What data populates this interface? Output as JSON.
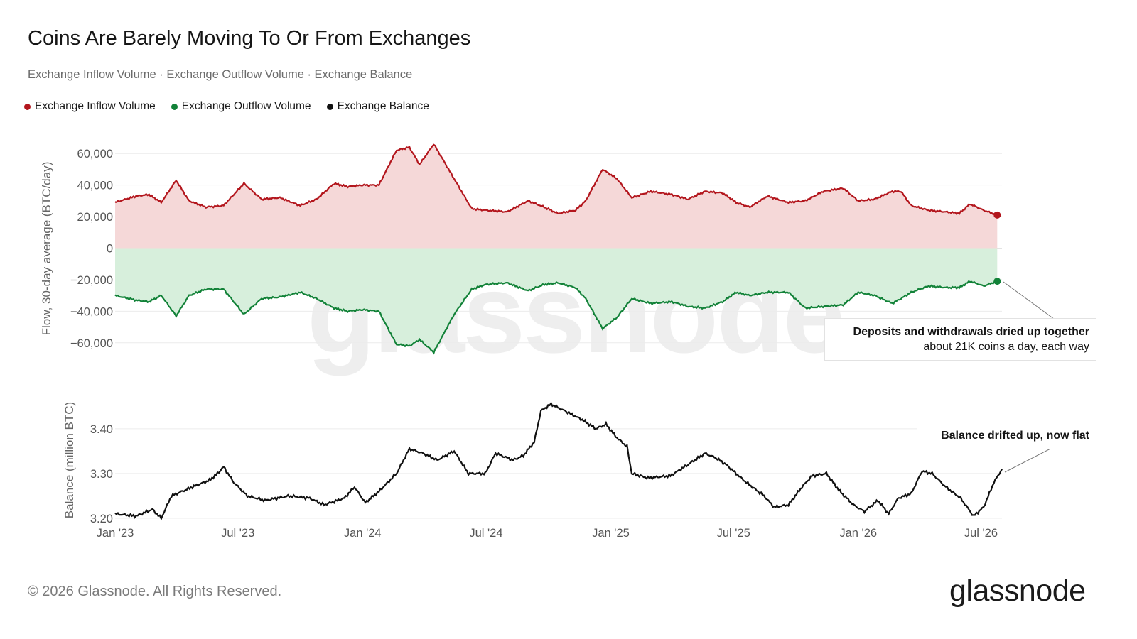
{
  "title": "Coins Are Barely Moving To Or From Exchanges",
  "subtitle": "Exchange Inflow Volume · Exchange Outflow Volume · Exchange Balance",
  "legend": [
    {
      "label": "Exchange Inflow Volume",
      "color": "#b3161d"
    },
    {
      "label": "Exchange Outflow Volume",
      "color": "#128238"
    },
    {
      "label": "Exchange Balance",
      "color": "#111111"
    }
  ],
  "colors": {
    "inflow_line": "#b3161d",
    "inflow_fill": "#f5d8d8",
    "outflow_line": "#128238",
    "outflow_fill": "#d7efdc",
    "balance_line": "#111111",
    "grid": "#ececec"
  },
  "watermark": "glassnode",
  "callouts": {
    "flow": {
      "bold": "Deposits and withdrawals dried up together",
      "text": "about 21K coins a day, each way"
    },
    "balance": {
      "bold": "Balance drifted up, now flat"
    }
  },
  "footer": "© 2026 Glassnode. All Rights Reserved.",
  "logo": "glassnode",
  "chart_data": [
    {
      "type": "area",
      "ylabel": "Flow, 30-day average (BTC/day)",
      "ylim": [
        -70000,
        70000
      ],
      "yticks": [
        60000,
        40000,
        20000,
        0,
        -20000,
        -40000,
        -60000
      ],
      "ytick_labels": [
        "60,000",
        "40,000",
        "20,000",
        "0",
        "−20,000",
        "−40,000",
        "−60,000"
      ],
      "x_range": [
        "2023-01-01",
        "2026-08-01"
      ],
      "grid": true,
      "series": [
        {
          "name": "Exchange Inflow Volume",
          "points": [
            [
              "2023-01-01",
              29000
            ],
            [
              "2023-02-01",
              33000
            ],
            [
              "2023-02-20",
              34000
            ],
            [
              "2023-03-10",
              29000
            ],
            [
              "2023-04-01",
              43000
            ],
            [
              "2023-04-20",
              30000
            ],
            [
              "2023-05-15",
              26000
            ],
            [
              "2023-06-10",
              27000
            ],
            [
              "2023-07-10",
              41000
            ],
            [
              "2023-08-05",
              31000
            ],
            [
              "2023-09-01",
              32000
            ],
            [
              "2023-10-01",
              27000
            ],
            [
              "2023-10-25",
              31000
            ],
            [
              "2023-11-20",
              41000
            ],
            [
              "2023-12-10",
              39000
            ],
            [
              "2024-01-01",
              40000
            ],
            [
              "2024-01-25",
              40000
            ],
            [
              "2024-02-20",
              62000
            ],
            [
              "2024-03-10",
              64000
            ],
            [
              "2024-03-25",
              53000
            ],
            [
              "2024-04-15",
              66000
            ],
            [
              "2024-05-15",
              44000
            ],
            [
              "2024-06-10",
              25000
            ],
            [
              "2024-07-01",
              24000
            ],
            [
              "2024-08-01",
              23000
            ],
            [
              "2024-09-01",
              30000
            ],
            [
              "2024-09-25",
              26000
            ],
            [
              "2024-10-15",
              22000
            ],
            [
              "2024-11-10",
              24000
            ],
            [
              "2024-11-25",
              30000
            ],
            [
              "2024-12-20",
              50000
            ],
            [
              "2025-01-10",
              44000
            ],
            [
              "2025-02-01",
              32000
            ],
            [
              "2025-03-01",
              36000
            ],
            [
              "2025-04-01",
              34000
            ],
            [
              "2025-04-25",
              31000
            ],
            [
              "2025-05-20",
              36000
            ],
            [
              "2025-06-15",
              35000
            ],
            [
              "2025-07-05",
              29000
            ],
            [
              "2025-07-25",
              26000
            ],
            [
              "2025-08-20",
              33000
            ],
            [
              "2025-09-20",
              29000
            ],
            [
              "2025-10-15",
              30000
            ],
            [
              "2025-11-10",
              36000
            ],
            [
              "2025-12-10",
              38000
            ],
            [
              "2026-01-01",
              30000
            ],
            [
              "2026-01-25",
              31000
            ],
            [
              "2026-02-20",
              36000
            ],
            [
              "2026-03-05",
              36000
            ],
            [
              "2026-03-20",
              27000
            ],
            [
              "2026-04-15",
              24000
            ],
            [
              "2026-05-10",
              23000
            ],
            [
              "2026-05-30",
              22000
            ],
            [
              "2026-06-15",
              28000
            ],
            [
              "2026-07-05",
              24000
            ],
            [
              "2026-07-25",
              21000
            ]
          ]
        },
        {
          "name": "Exchange Outflow Volume",
          "points": [
            [
              "2023-01-01",
              -30000
            ],
            [
              "2023-02-01",
              -33000
            ],
            [
              "2023-02-20",
              -34000
            ],
            [
              "2023-03-10",
              -30000
            ],
            [
              "2023-04-01",
              -43000
            ],
            [
              "2023-04-20",
              -30000
            ],
            [
              "2023-05-15",
              -26000
            ],
            [
              "2023-06-10",
              -26000
            ],
            [
              "2023-07-10",
              -42000
            ],
            [
              "2023-08-05",
              -32000
            ],
            [
              "2023-09-01",
              -31000
            ],
            [
              "2023-10-01",
              -28000
            ],
            [
              "2023-10-25",
              -32000
            ],
            [
              "2023-11-20",
              -38000
            ],
            [
              "2023-12-10",
              -40000
            ],
            [
              "2024-01-01",
              -39000
            ],
            [
              "2024-01-25",
              -40000
            ],
            [
              "2024-02-20",
              -61000
            ],
            [
              "2024-03-10",
              -62000
            ],
            [
              "2024-03-25",
              -58000
            ],
            [
              "2024-04-15",
              -66000
            ],
            [
              "2024-05-15",
              -42000
            ],
            [
              "2024-06-10",
              -26000
            ],
            [
              "2024-07-01",
              -23000
            ],
            [
              "2024-08-01",
              -22000
            ],
            [
              "2024-09-01",
              -27000
            ],
            [
              "2024-09-25",
              -23000
            ],
            [
              "2024-10-15",
              -22000
            ],
            [
              "2024-11-10",
              -25000
            ],
            [
              "2024-11-25",
              -32000
            ],
            [
              "2024-12-20",
              -51000
            ],
            [
              "2025-01-10",
              -44000
            ],
            [
              "2025-02-01",
              -32000
            ],
            [
              "2025-03-01",
              -35000
            ],
            [
              "2025-04-01",
              -34000
            ],
            [
              "2025-04-25",
              -37000
            ],
            [
              "2025-05-20",
              -38000
            ],
            [
              "2025-06-15",
              -34000
            ],
            [
              "2025-07-05",
              -28000
            ],
            [
              "2025-07-25",
              -30000
            ],
            [
              "2025-08-20",
              -28000
            ],
            [
              "2025-09-20",
              -28000
            ],
            [
              "2025-10-15",
              -38000
            ],
            [
              "2025-11-10",
              -37000
            ],
            [
              "2025-12-10",
              -36000
            ],
            [
              "2026-01-01",
              -28000
            ],
            [
              "2026-01-25",
              -30000
            ],
            [
              "2026-02-20",
              -35000
            ],
            [
              "2026-03-05",
              -32000
            ],
            [
              "2026-03-20",
              -28000
            ],
            [
              "2026-04-15",
              -24000
            ],
            [
              "2026-05-10",
              -25000
            ],
            [
              "2026-05-30",
              -25000
            ],
            [
              "2026-06-15",
              -21000
            ],
            [
              "2026-07-05",
              -24000
            ],
            [
              "2026-07-25",
              -21000
            ]
          ]
        }
      ]
    },
    {
      "type": "line",
      "ylabel": "Balance (million BTC)",
      "ylim": [
        3.2,
        3.46
      ],
      "yticks": [
        3.4,
        3.3,
        3.2
      ],
      "ytick_labels": [
        "3.40",
        "3.30",
        "3.20"
      ],
      "x_range": [
        "2023-01-01",
        "2026-08-01"
      ],
      "xticks": [
        "2023-01-01",
        "2023-07-01",
        "2024-01-01",
        "2024-07-01",
        "2025-01-01",
        "2025-07-01",
        "2026-01-01",
        "2026-07-01"
      ],
      "xtick_labels": [
        "Jan '23",
        "Jul '23",
        "Jan '24",
        "Jul '24",
        "Jan '25",
        "Jul '25",
        "Jan '26",
        "Jul '26"
      ],
      "grid": true,
      "series": [
        {
          "name": "Exchange Balance",
          "points": [
            [
              "2023-01-01",
              3.21
            ],
            [
              "2023-02-01",
              3.205
            ],
            [
              "2023-02-25",
              3.22
            ],
            [
              "2023-03-10",
              3.2
            ],
            [
              "2023-03-25",
              3.25
            ],
            [
              "2023-04-25",
              3.27
            ],
            [
              "2023-05-20",
              3.285
            ],
            [
              "2023-06-01",
              3.3
            ],
            [
              "2023-06-10",
              3.315
            ],
            [
              "2023-06-25",
              3.28
            ],
            [
              "2023-07-15",
              3.25
            ],
            [
              "2023-08-10",
              3.24
            ],
            [
              "2023-09-15",
              3.25
            ],
            [
              "2023-10-15",
              3.245
            ],
            [
              "2023-11-05",
              3.23
            ],
            [
              "2023-12-05",
              3.245
            ],
            [
              "2023-12-20",
              3.27
            ],
            [
              "2024-01-05",
              3.235
            ],
            [
              "2024-01-25",
              3.26
            ],
            [
              "2024-02-20",
              3.3
            ],
            [
              "2024-03-10",
              3.355
            ],
            [
              "2024-03-30",
              3.345
            ],
            [
              "2024-04-20",
              3.33
            ],
            [
              "2024-05-15",
              3.35
            ],
            [
              "2024-06-05",
              3.3
            ],
            [
              "2024-06-30",
              3.3
            ],
            [
              "2024-07-15",
              3.345
            ],
            [
              "2024-08-10",
              3.33
            ],
            [
              "2024-08-25",
              3.34
            ],
            [
              "2024-09-10",
              3.37
            ],
            [
              "2024-09-20",
              3.44
            ],
            [
              "2024-10-05",
              3.455
            ],
            [
              "2024-10-25",
              3.44
            ],
            [
              "2024-11-20",
              3.42
            ],
            [
              "2024-12-10",
              3.4
            ],
            [
              "2024-12-25",
              3.41
            ],
            [
              "2025-01-10",
              3.38
            ],
            [
              "2025-01-25",
              3.36
            ],
            [
              "2025-02-01",
              3.3
            ],
            [
              "2025-02-25",
              3.29
            ],
            [
              "2025-03-30",
              3.295
            ],
            [
              "2025-04-25",
              3.32
            ],
            [
              "2025-05-20",
              3.345
            ],
            [
              "2025-06-05",
              3.335
            ],
            [
              "2025-06-20",
              3.32
            ],
            [
              "2025-07-20",
              3.28
            ],
            [
              "2025-08-15",
              3.25
            ],
            [
              "2025-08-30",
              3.225
            ],
            [
              "2025-09-20",
              3.23
            ],
            [
              "2025-10-10",
              3.27
            ],
            [
              "2025-10-25",
              3.295
            ],
            [
              "2025-11-15",
              3.3
            ],
            [
              "2025-12-05",
              3.26
            ],
            [
              "2025-12-25",
              3.23
            ],
            [
              "2026-01-10",
              3.215
            ],
            [
              "2026-01-30",
              3.24
            ],
            [
              "2026-02-15",
              3.21
            ],
            [
              "2026-03-01",
              3.245
            ],
            [
              "2026-03-20",
              3.255
            ],
            [
              "2026-04-05",
              3.305
            ],
            [
              "2026-04-20",
              3.3
            ],
            [
              "2026-05-10",
              3.27
            ],
            [
              "2026-06-01",
              3.245
            ],
            [
              "2026-06-20",
              3.205
            ],
            [
              "2026-07-05",
              3.225
            ],
            [
              "2026-07-20",
              3.28
            ],
            [
              "2026-08-01",
              3.31
            ]
          ]
        }
      ]
    }
  ]
}
